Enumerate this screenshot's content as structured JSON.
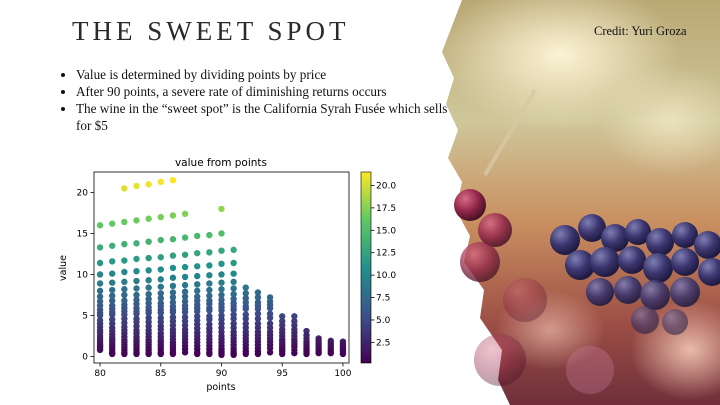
{
  "slide": {
    "title": "THE SWEET SPOT",
    "bullets": [
      "Value is determined by dividing points by price",
      "After 90 points, a severe rate of diminishing returns occurs",
      "The wine in the “sweet spot” is the California Syrah Fusée which sells for $5"
    ],
    "credit": "Credit: Yuri Groza"
  },
  "chart_data": {
    "type": "scatter",
    "title": "value from points",
    "xlabel": "points",
    "ylabel": "value",
    "xlim": [
      79.5,
      100.5
    ],
    "ylim": [
      -0.8,
      22.5
    ],
    "xticks": [
      80,
      85,
      90,
      95,
      100
    ],
    "yticks": [
      0,
      5,
      10,
      15,
      20
    ],
    "colorbar": {
      "colormap": "viridis",
      "range": [
        0.2,
        21.5
      ],
      "ticks": [
        "2.5",
        "5.0",
        "7.5",
        "10.0",
        "12.5",
        "15.0",
        "17.5",
        "20.0"
      ]
    },
    "x": [
      80,
      80,
      80,
      80,
      80,
      80,
      80,
      80,
      80,
      80,
      80,
      80,
      80,
      80,
      80,
      80,
      80,
      80,
      80,
      80,
      80,
      80,
      80,
      80,
      80,
      81,
      81,
      81,
      81,
      81,
      81,
      81,
      81,
      81,
      81,
      81,
      81,
      81,
      81,
      81,
      81,
      81,
      81,
      81,
      81,
      81,
      81,
      81,
      81,
      81,
      82,
      82,
      82,
      82,
      82,
      82,
      82,
      82,
      82,
      82,
      82,
      82,
      82,
      82,
      82,
      82,
      82,
      82,
      82,
      82,
      82,
      82,
      82,
      82,
      82,
      82,
      83,
      83,
      83,
      83,
      83,
      83,
      83,
      83,
      83,
      83,
      83,
      83,
      83,
      83,
      83,
      83,
      83,
      83,
      83,
      83,
      83,
      83,
      83,
      83,
      83,
      83,
      84,
      84,
      84,
      84,
      84,
      84,
      84,
      84,
      84,
      84,
      84,
      84,
      84,
      84,
      84,
      84,
      84,
      84,
      84,
      84,
      84,
      84,
      84,
      84,
      84,
      84,
      85,
      85,
      85,
      85,
      85,
      85,
      85,
      85,
      85,
      85,
      85,
      85,
      85,
      85,
      85,
      85,
      85,
      85,
      85,
      85,
      85,
      85,
      85,
      85,
      85,
      85,
      86,
      86,
      86,
      86,
      86,
      86,
      86,
      86,
      86,
      86,
      86,
      86,
      86,
      86,
      86,
      86,
      86,
      86,
      86,
      86,
      86,
      86,
      86,
      86,
      86,
      86,
      87,
      87,
      87,
      87,
      87,
      87,
      87,
      87,
      87,
      87,
      87,
      87,
      87,
      87,
      87,
      87,
      87,
      87,
      87,
      87,
      87,
      87,
      87,
      88,
      88,
      88,
      88,
      88,
      88,
      88,
      88,
      88,
      88,
      88,
      88,
      88,
      88,
      88,
      88,
      88,
      88,
      88,
      88,
      88,
      88,
      88,
      89,
      89,
      89,
      89,
      89,
      89,
      89,
      89,
      89,
      89,
      89,
      89,
      89,
      89,
      89,
      89,
      89,
      89,
      89,
      89,
      89,
      89,
      89,
      90,
      90,
      90,
      90,
      90,
      90,
      90,
      90,
      90,
      90,
      90,
      90,
      90,
      90,
      90,
      90,
      90,
      90,
      90,
      90,
      90,
      90,
      90,
      90,
      90,
      91,
      91,
      91,
      91,
      91,
      91,
      91,
      91,
      91,
      91,
      91,
      91,
      91,
      91,
      91,
      91,
      91,
      91,
      91,
      91,
      91,
      91,
      91,
      92,
      92,
      92,
      92,
      92,
      92,
      92,
      92,
      92,
      92,
      92,
      92,
      92,
      92,
      92,
      92,
      92,
      92,
      93,
      93,
      93,
      93,
      93,
      93,
      93,
      93,
      93,
      93,
      93,
      93,
      93,
      93,
      93,
      93,
      93,
      94,
      94,
      94,
      94,
      94,
      94,
      94,
      94,
      94,
      94,
      94,
      94,
      94,
      94,
      94,
      95,
      95,
      95,
      95,
      95,
      95,
      95,
      95,
      95,
      95,
      95,
      95,
      95,
      96,
      96,
      96,
      96,
      96,
      96,
      96,
      96,
      96,
      96,
      96,
      96,
      97,
      97,
      97,
      97,
      97,
      97,
      97,
      97,
      97,
      98,
      98,
      98,
      98,
      98,
      98,
      98,
      99,
      99,
      99,
      99,
      99,
      99,
      100,
      100,
      100,
      100,
      100,
      100
    ],
    "y": [
      16.0,
      13.3,
      11.4,
      10.0,
      8.9,
      8.0,
      7.3,
      6.7,
      6.2,
      5.7,
      5.3,
      5.0,
      4.4,
      4.0,
      3.6,
      3.2,
      2.9,
      2.5,
      2.2,
      1.9,
      1.6,
      1.4,
      1.2,
      1.0,
      0.8,
      16.2,
      13.5,
      11.6,
      10.1,
      9.0,
      8.1,
      7.4,
      6.8,
      6.2,
      5.8,
      5.4,
      5.1,
      4.5,
      4.0,
      3.5,
      3.1,
      2.7,
      2.3,
      2.0,
      1.7,
      1.4,
      1.1,
      0.8,
      0.5,
      0.3,
      20.5,
      16.4,
      13.7,
      11.7,
      10.3,
      9.1,
      8.2,
      7.5,
      6.8,
      6.3,
      5.9,
      5.5,
      5.1,
      4.6,
      4.1,
      3.6,
      3.2,
      2.8,
      2.4,
      2.0,
      1.7,
      1.4,
      1.1,
      0.8,
      0.5,
      0.3,
      20.8,
      16.6,
      13.8,
      11.9,
      10.4,
      9.2,
      8.3,
      7.5,
      6.9,
      6.4,
      5.9,
      5.5,
      5.2,
      4.6,
      4.2,
      3.7,
      3.2,
      2.8,
      2.4,
      2.0,
      1.7,
      1.4,
      1.1,
      0.8,
      0.5,
      0.3,
      21.0,
      16.8,
      14.0,
      12.0,
      10.5,
      9.3,
      8.4,
      7.6,
      7.0,
      6.5,
      6.0,
      5.6,
      5.3,
      4.7,
      4.2,
      3.7,
      3.2,
      2.8,
      2.4,
      2.0,
      1.7,
      1.4,
      1.1,
      0.8,
      0.5,
      0.3,
      21.3,
      17.0,
      14.2,
      12.1,
      10.6,
      9.4,
      8.5,
      7.7,
      7.1,
      6.5,
      6.1,
      5.7,
      5.3,
      4.7,
      4.2,
      3.7,
      3.3,
      2.8,
      2.4,
      2.0,
      1.7,
      1.4,
      1.1,
      0.8,
      0.5,
      0.3,
      21.5,
      17.2,
      14.3,
      12.3,
      10.8,
      9.6,
      8.6,
      7.8,
      7.2,
      6.6,
      6.1,
      5.7,
      5.4,
      4.8,
      4.3,
      3.8,
      3.3,
      2.9,
      2.5,
      2.1,
      1.7,
      1.4,
      1.1,
      0.8,
      0.5,
      0.3,
      17.4,
      14.5,
      12.4,
      10.9,
      9.7,
      8.7,
      7.9,
      7.3,
      6.7,
      6.2,
      5.8,
      5.4,
      4.8,
      4.3,
      3.8,
      3.3,
      2.9,
      2.5,
      2.1,
      1.7,
      1.3,
      0.9,
      0.5,
      14.7,
      12.6,
      11.0,
      9.8,
      8.8,
      8.0,
      7.3,
      6.8,
      6.3,
      5.9,
      5.5,
      4.9,
      4.4,
      3.9,
      3.4,
      2.9,
      2.5,
      2.1,
      1.7,
      1.3,
      0.9,
      0.5,
      0.3,
      14.8,
      12.7,
      11.1,
      9.9,
      8.9,
      8.1,
      7.4,
      6.8,
      6.4,
      5.9,
      5.6,
      4.9,
      4.5,
      3.9,
      3.4,
      3.0,
      2.5,
      2.1,
      1.7,
      1.3,
      0.9,
      0.5,
      0.3,
      18.0,
      15.0,
      12.9,
      11.3,
      10.0,
      9.0,
      8.2,
      7.5,
      6.9,
      6.4,
      6.0,
      5.6,
      5.0,
      4.5,
      4.0,
      3.5,
      3.0,
      2.5,
      2.1,
      1.7,
      1.3,
      0.9,
      0.6,
      0.4,
      0.2,
      13.0,
      11.4,
      10.1,
      9.1,
      8.3,
      7.6,
      7.0,
      6.5,
      6.1,
      5.7,
      5.1,
      4.6,
      4.0,
      3.5,
      3.0,
      2.6,
      2.2,
      1.8,
      1.4,
      1.0,
      0.7,
      0.4,
      0.2,
      8.4,
      7.7,
      7.1,
      6.6,
      6.1,
      5.8,
      5.1,
      4.6,
      4.0,
      3.5,
      3.0,
      2.6,
      2.2,
      1.8,
      1.4,
      1.0,
      0.6,
      0.3,
      7.8,
      7.2,
      6.6,
      6.2,
      5.8,
      5.2,
      4.6,
      4.0,
      3.5,
      3.0,
      2.6,
      2.2,
      1.8,
      1.4,
      1.0,
      0.6,
      0.3,
      7.2,
      6.7,
      6.3,
      5.9,
      5.2,
      4.7,
      4.0,
      3.5,
      3.0,
      2.6,
      2.2,
      1.8,
      1.4,
      1.0,
      0.5,
      4.9,
      4.3,
      3.8,
      3.3,
      2.9,
      2.5,
      2.1,
      1.8,
      1.5,
      1.2,
      0.9,
      0.6,
      0.3,
      4.9,
      4.3,
      3.8,
      3.3,
      2.9,
      2.5,
      2.1,
      1.8,
      1.5,
      1.2,
      0.8,
      0.4,
      3.1,
      2.6,
      2.2,
      1.8,
      1.5,
      1.2,
      0.9,
      0.6,
      0.3,
      2.2,
      1.9,
      1.6,
      1.3,
      1.0,
      0.7,
      0.4,
      1.9,
      1.6,
      1.3,
      1.0,
      0.7,
      0.4,
      1.8,
      1.5,
      1.2,
      0.9,
      0.6,
      0.3
    ]
  }
}
